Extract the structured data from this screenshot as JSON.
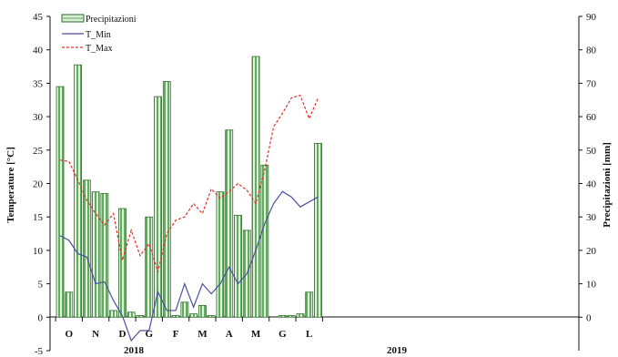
{
  "chart_data": {
    "type": "bar+line",
    "ylabel_left": "Temperature [°C]",
    "ylabel_right": "Precipitazioni [mm]",
    "ylim_left": [
      -5,
      45
    ],
    "ylim_right": [
      0,
      90
    ],
    "yticks_left": [
      "-5",
      "0",
      "5",
      "10",
      "15",
      "20",
      "25",
      "30",
      "35",
      "40",
      "45"
    ],
    "yticks_right": [
      "0",
      "10",
      "20",
      "30",
      "40",
      "50",
      "60",
      "70",
      "80",
      "90"
    ],
    "months": [
      "O",
      "N",
      "D",
      "G",
      "F",
      "M",
      "A",
      "M",
      "G",
      "L"
    ],
    "years": [
      "2018",
      "2019"
    ],
    "legend": [
      "Precipitazioni",
      "T_Min",
      "T_Max"
    ],
    "colors": {
      "bar_fill": "#5fae5a",
      "bar_stroke": "#2f6b2d",
      "tmin": "#4a4f9e",
      "tmax": "#e0302a"
    },
    "precipitation": [
      69,
      7.5,
      75.5,
      41,
      37.5,
      37,
      2,
      32.5,
      1.5,
      0.5,
      30,
      66,
      70.5,
      0.5,
      4.5,
      1,
      3.5,
      0.5,
      37.5,
      56,
      30.5,
      26,
      78,
      45.5,
      0.5,
      0.5,
      1,
      7.5,
      52
    ],
    "precip_x": [
      0,
      0.5,
      1,
      1.5,
      2,
      2.5,
      3,
      3.5,
      4,
      4.5,
      5,
      5.5,
      6,
      6.5,
      7,
      7.5,
      8,
      8.5,
      9,
      9.5,
      10,
      10.5,
      11,
      11.5,
      12.5,
      13,
      13.5,
      14,
      14.5
    ],
    "t_min": [
      12.2,
      11.5,
      9.5,
      9.0,
      5.0,
      5.3,
      2.5,
      0.2,
      -3.5,
      -2.0,
      -2.0,
      3.8,
      1.0,
      1.0,
      5.0,
      1.5,
      5.0,
      3.5,
      5.0,
      7.5,
      5.0,
      6.5,
      10.0,
      14.0,
      17.0,
      18.8,
      18.0,
      16.5,
      18.0
    ],
    "t_max": [
      23.5,
      23.3,
      20.5,
      17.5,
      15.5,
      13.8,
      15.5,
      8.5,
      13.0,
      9.2,
      11.0,
      6.8,
      12.5,
      14.5,
      15.0,
      17.0,
      15.5,
      19.2,
      17.8,
      18.8,
      20.0,
      19.0,
      17.0,
      22.0,
      28.5,
      30.5,
      32.8,
      33.2,
      29.7,
      32.8
    ],
    "t_max_x": [
      0,
      0.5,
      1,
      1.5,
      2,
      2.5,
      3,
      3.5,
      4,
      4.5,
      5,
      5.5,
      6,
      6.5,
      7,
      7.5,
      8,
      8.5,
      9,
      9.5,
      10,
      10.5,
      11,
      11.5,
      12,
      12.5,
      13,
      13.5,
      14,
      14.5
    ],
    "t_min_x": [
      0,
      0.5,
      1,
      1.5,
      2,
      2.5,
      3,
      3.5,
      4,
      4.5,
      5,
      5.5,
      6,
      6.5,
      7,
      7.5,
      8,
      8.5,
      9,
      9.5,
      10,
      10.5,
      11,
      11.5,
      12,
      12.5,
      13,
      13.5,
      14.5
    ],
    "grid": false
  }
}
